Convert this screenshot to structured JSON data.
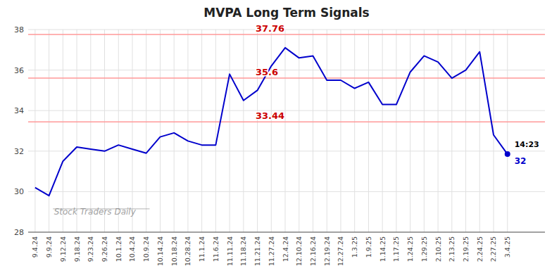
{
  "chart_data": {
    "type": "line",
    "title": "MVPA Long Term Signals",
    "categories": [
      "9.4.24",
      "9.9.24",
      "9.12.24",
      "9.18.24",
      "9.23.24",
      "9.26.24",
      "10.1.24",
      "10.4.24",
      "10.9.24",
      "10.14.24",
      "10.18.24",
      "10.28.24",
      "11.1.24",
      "11.6.24",
      "11.11.24",
      "11.18.24",
      "11.21.24",
      "11.27.24",
      "12.4.24",
      "12.10.24",
      "12.16.24",
      "12.19.24",
      "12.27.24",
      "1.3.25",
      "1.9.25",
      "1.14.25",
      "1.17.25",
      "1.24.25",
      "1.29.25",
      "2.10.25",
      "2.13.25",
      "2.19.25",
      "2.24.25",
      "2.27.25",
      "3.4.25"
    ],
    "values": [
      30.2,
      29.8,
      31.5,
      32.2,
      32.1,
      32.0,
      32.3,
      32.1,
      31.9,
      32.7,
      32.9,
      32.5,
      32.3,
      32.3,
      35.8,
      34.5,
      35.0,
      36.2,
      37.1,
      36.6,
      36.7,
      35.5,
      35.5,
      35.1,
      35.4,
      34.3,
      34.3,
      35.9,
      36.7,
      36.4,
      35.6,
      36.0,
      36.9,
      32.8,
      31.85
    ],
    "color": "#0000cc",
    "ylim": [
      28,
      38
    ],
    "yticks": [
      28,
      30,
      32,
      34,
      36,
      38
    ],
    "grid": true,
    "reference_lines": {
      "values": [
        37.76,
        35.6,
        33.44
      ],
      "color": "#ff9999"
    },
    "annotations": [
      "14:23",
      "32"
    ],
    "watermark": "Stock Traders Daily"
  }
}
